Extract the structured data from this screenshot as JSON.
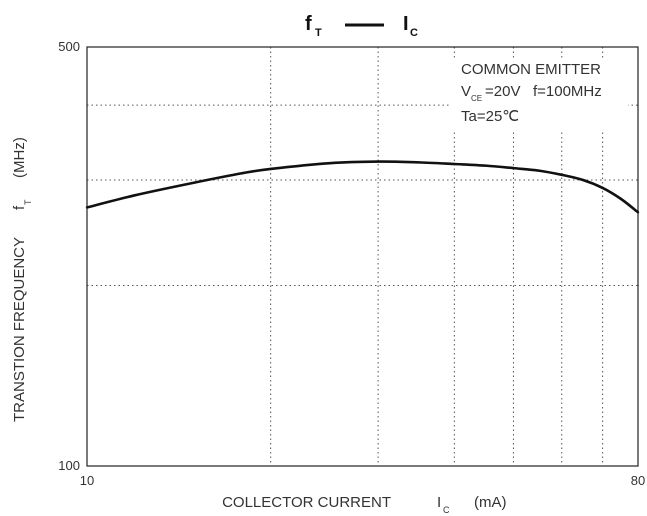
{
  "chart_data": {
    "type": "line",
    "title": {
      "left_symbol": "f",
      "left_sub": "T",
      "right_symbol": "I",
      "right_sub": "C"
    },
    "xlabel": {
      "text": "COLLECTOR CURRENT",
      "symbol": "I",
      "sub": "C",
      "unit": "(mA)"
    },
    "ylabel": {
      "text": "TRANSTION FREQUENCY",
      "symbol": "f",
      "sub": "T",
      "unit": "(MHz)"
    },
    "x_scale": "log",
    "y_scale": "log",
    "xlim": [
      10,
      80
    ],
    "ylim": [
      100,
      500
    ],
    "x_tick_labels": [
      "10",
      "80"
    ],
    "y_tick_labels": [
      "500",
      "100"
    ],
    "x_gridlines": [
      20,
      30,
      40,
      50,
      60,
      70
    ],
    "y_gridlines": [
      200,
      300,
      400
    ],
    "grid": true,
    "annotation": {
      "line1": "COMMON EMITTER",
      "line2_symbol": "V",
      "line2_sub": "CE",
      "line2_rest": "=20V   f=100MHz",
      "line3": "Ta=25℃"
    },
    "series": [
      {
        "color": "#111111",
        "x": [
          10,
          12,
          15,
          18,
          20,
          25,
          30,
          35,
          40,
          45,
          50,
          55,
          60,
          65,
          70,
          75,
          80
        ],
        "y": [
          270,
          283,
          297,
          308,
          313,
          320,
          322,
          321,
          319,
          317,
          314,
          311,
          306,
          300,
          291,
          279,
          265
        ]
      }
    ]
  }
}
